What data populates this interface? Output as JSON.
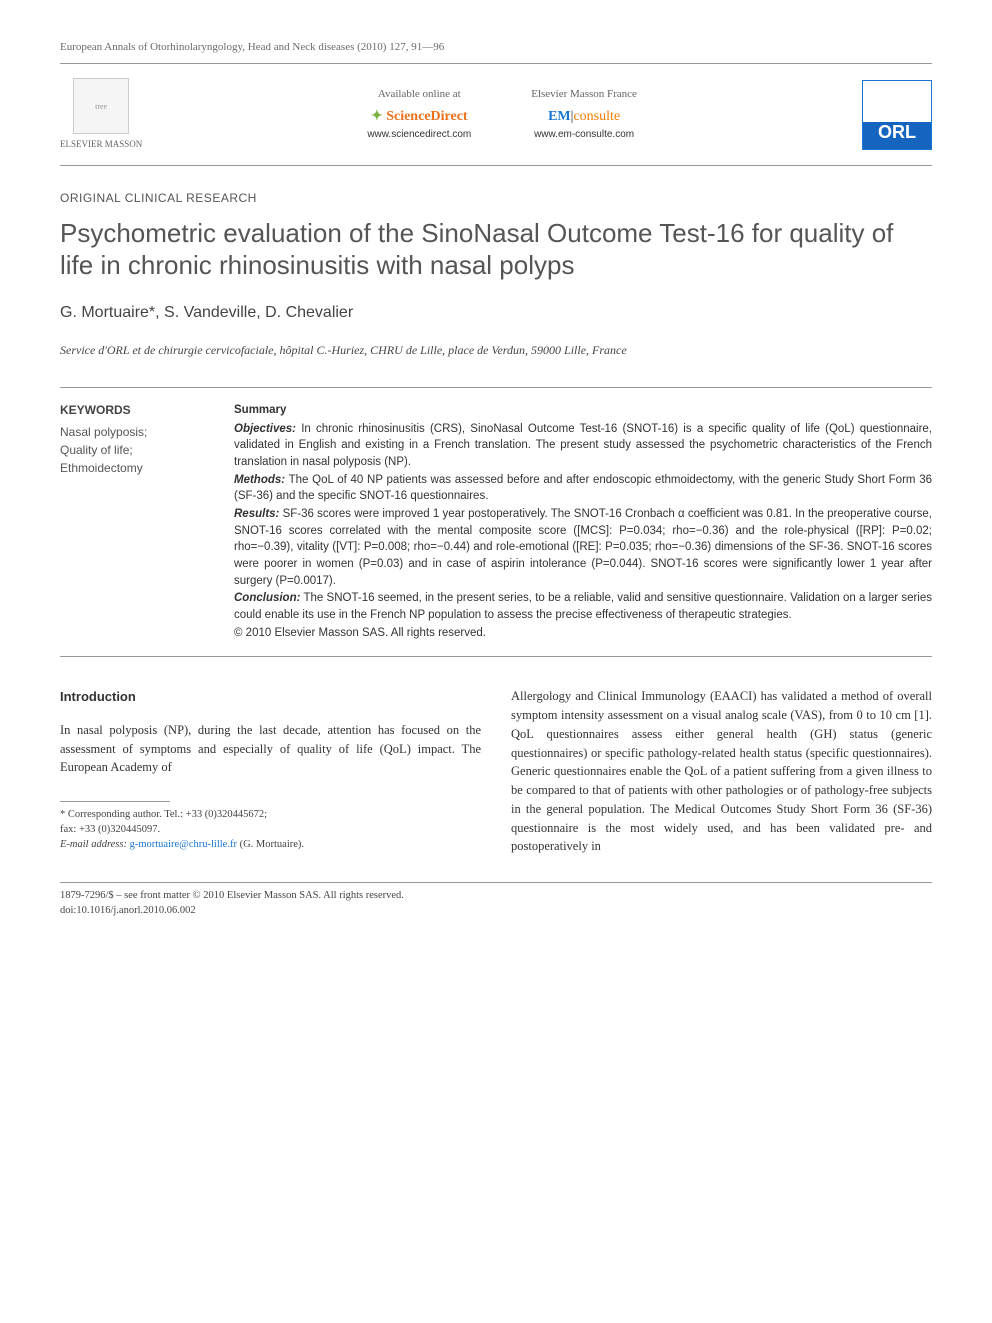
{
  "citation": "European Annals of Otorhinolaryngology, Head and Neck diseases (2010) 127, 91—96",
  "header": {
    "publisher_logo_label": "ELSEVIER MASSON",
    "available_label": "Available online at",
    "sciencedirect_brand": "ScienceDirect",
    "sciencedirect_url": "www.sciencedirect.com",
    "masson_label": "Elsevier Masson France",
    "emconsulte_em": "EM",
    "emconsulte_cons": "consulte",
    "emconsulte_url": "www.em-consulte.com",
    "journal_logo": "ORL"
  },
  "article_type": "ORIGINAL CLINICAL RESEARCH",
  "title": "Psychometric evaluation of the SinoNasal Outcome Test-16 for quality of life in chronic rhinosinusitis with nasal polyps",
  "authors": "G. Mortuaire*, S. Vandeville, D. Chevalier",
  "affiliation": "Service d'ORL et de chirurgie cervicofaciale, hôpital C.-Huriez, CHRU de Lille, place de Verdun, 59000 Lille, France",
  "keywords": {
    "heading": "KEYWORDS",
    "items": [
      "Nasal polyposis;",
      "Quality of life;",
      "Ethmoidectomy"
    ]
  },
  "summary": {
    "heading": "Summary",
    "objectives_label": "Objectives:",
    "objectives_text": " In chronic rhinosinusitis (CRS), SinoNasal Outcome Test-16 (SNOT-16) is a specific quality of life (QoL) questionnaire, validated in English and existing in a French translation. The present study assessed the psychometric characteristics of the French translation in nasal polyposis (NP).",
    "methods_label": "Methods:",
    "methods_text": " The QoL of 40 NP patients was assessed before and after endoscopic ethmoidectomy, with the generic Study Short Form 36 (SF-36) and the specific SNOT-16 questionnaires.",
    "results_label": "Results:",
    "results_text": " SF-36 scores were improved 1 year postoperatively. The SNOT-16 Cronbach α coefficient was 0.81. In the preoperative course, SNOT-16 scores correlated with the mental composite score ([MCS]: P=0.034; rho=−0.36) and the role-physical ([RP]: P=0.02; rho=−0.39), vitality ([VT]: P=0.008; rho=−0.44) and role-emotional ([RE]: P=0.035; rho=−0.36) dimensions of the SF-36. SNOT-16 scores were poorer in women (P=0.03) and in case of aspirin intolerance (P=0.044). SNOT-16 scores were significantly lower 1 year after surgery (P=0.0017).",
    "conclusion_label": "Conclusion:",
    "conclusion_text": " The SNOT-16 seemed, in the present series, to be a reliable, valid and sensitive questionnaire. Validation on a larger series could enable its use in the French NP population to assess the precise effectiveness of therapeutic strategies.",
    "copyright": "© 2010 Elsevier Masson SAS. All rights reserved."
  },
  "body": {
    "intro_heading": "Introduction",
    "intro_left": "In nasal polyposis (NP), during the last decade, attention has focused on the assessment of symptoms and especially of quality of life (QoL) impact. The European Academy of",
    "intro_right": "Allergology and Clinical Immunology (EAACI) has validated a method of overall symptom intensity assessment on a visual analog scale (VAS), from 0 to 10 cm [1]. QoL questionnaires assess either general health (GH) status (generic questionnaires) or specific pathology-related health status (specific questionnaires). Generic questionnaires enable the QoL of a patient suffering from a given illness to be compared to that of patients with other pathologies or of pathology-free subjects in the general population. The Medical Outcomes Study Short Form 36 (SF-36) questionnaire is the most widely used, and has been validated pre- and postoperatively in",
    "ref_link": "[1]"
  },
  "footnote": {
    "corr_label": "* Corresponding author. Tel.: +33 (0)320445672;",
    "fax": "fax: +33 (0)320445097.",
    "email_label": "E-mail address:",
    "email": "g-mortuaire@chru-lille.fr",
    "email_name": "(G. Mortuaire)."
  },
  "footer": {
    "line1": "1879-7296/$ – see front matter © 2010 Elsevier Masson SAS. All rights reserved.",
    "line2": "doi:10.1016/j.anorl.2010.06.002"
  },
  "colors": {
    "text": "#333333",
    "muted": "#666666",
    "link": "#1976d2",
    "orange": "#e9711c",
    "rule": "#999999"
  }
}
